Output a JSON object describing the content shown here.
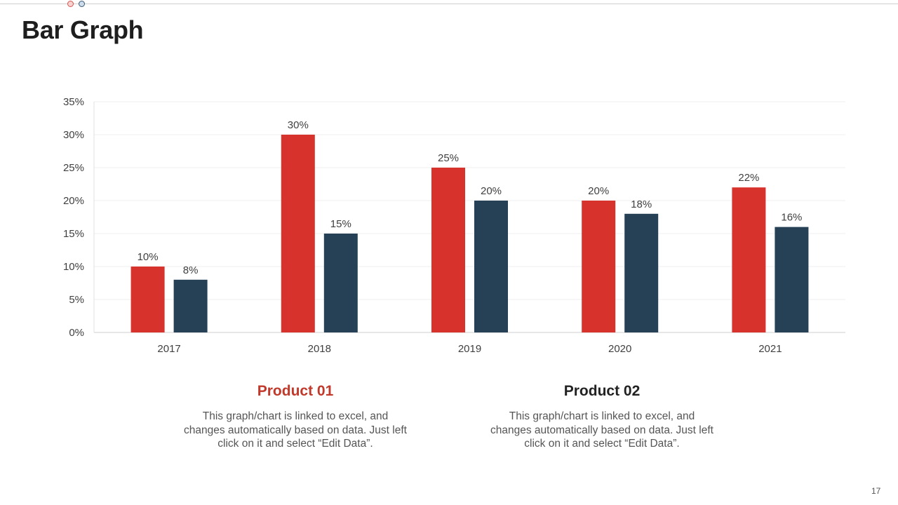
{
  "slide": {
    "title": "Bar Graph",
    "page_number": "17"
  },
  "legend": [
    {
      "title": "Product 01",
      "color": "#c0392b",
      "description": "This graph/chart is linked to excel, and changes automatically based on data. Just left click on it and select “Edit Data”."
    },
    {
      "title": "Product 02",
      "color": "#222222",
      "description": "This graph/chart is linked to excel, and changes automatically based on data. Just left click on it and select “Edit Data”."
    }
  ],
  "chart_data": {
    "type": "bar",
    "title": "",
    "xlabel": "",
    "ylabel": "",
    "categories": [
      "2017",
      "2018",
      "2019",
      "2020",
      "2021"
    ],
    "series": [
      {
        "name": "Product 01",
        "color": "#d8322c",
        "values": [
          10,
          30,
          25,
          20,
          22
        ]
      },
      {
        "name": "Product 02",
        "color": "#264155",
        "values": [
          8,
          15,
          20,
          18,
          16
        ]
      }
    ],
    "ylim": [
      0,
      35
    ],
    "yticks": [
      0,
      5,
      10,
      15,
      20,
      25,
      30,
      35
    ],
    "value_suffix": "%",
    "grid": true,
    "legend_position": "bottom"
  }
}
